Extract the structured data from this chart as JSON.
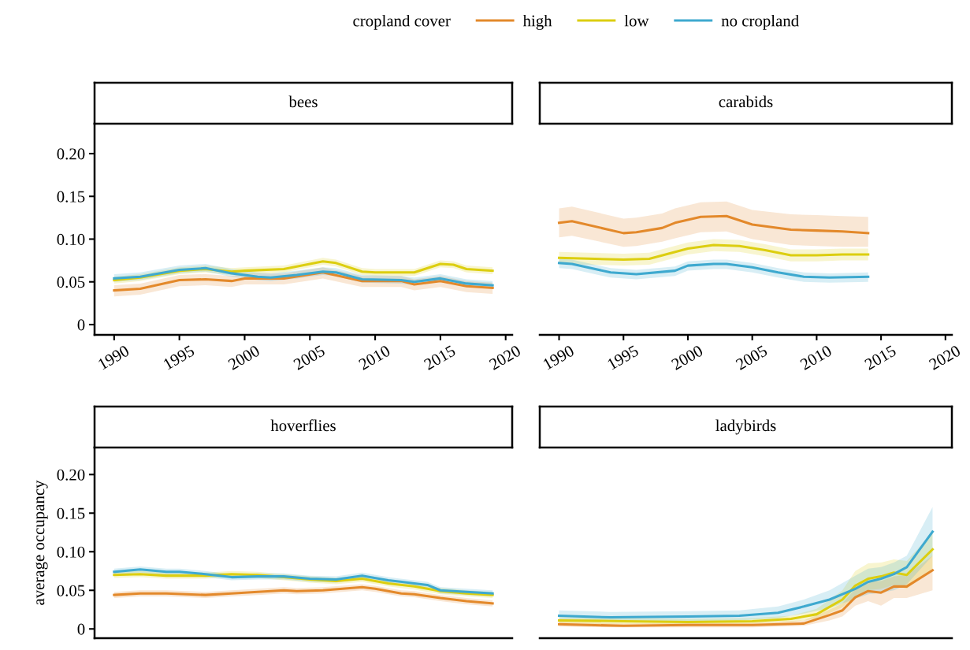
{
  "chart_data": [
    {
      "type": "line",
      "title": "bees",
      "legend": "top",
      "legend_title": "cropland cover",
      "xlim": [
        1988.5,
        2020.5
      ],
      "ylim": [
        -0.012,
        0.235
      ],
      "xticks": [
        1990,
        1995,
        2000,
        2005,
        2010,
        2015,
        2020
      ],
      "yticks": [
        {
          "value": 0,
          "label": "0"
        },
        {
          "value": 0.05,
          "label": "0.05"
        },
        {
          "value": 0.1,
          "label": "0.10"
        },
        {
          "value": 0.15,
          "label": "0.15"
        },
        {
          "value": 0.2,
          "label": "0.20"
        }
      ],
      "grid": false,
      "series": [
        {
          "name": "high",
          "color": "#e3892b",
          "x": [
            1990,
            1992,
            1995,
            1997,
            1999,
            2000,
            2003,
            2006,
            2009,
            2012,
            2013,
            2015,
            2017,
            2019
          ],
          "values": [
            0.04,
            0.042,
            0.052,
            0.053,
            0.051,
            0.054,
            0.054,
            0.061,
            0.051,
            0.051,
            0.047,
            0.051,
            0.045,
            0.043
          ],
          "lower": [
            0.033,
            0.035,
            0.045,
            0.046,
            0.044,
            0.047,
            0.047,
            0.054,
            0.044,
            0.044,
            0.04,
            0.044,
            0.038,
            0.036
          ],
          "upper": [
            0.046,
            0.048,
            0.058,
            0.059,
            0.057,
            0.06,
            0.06,
            0.067,
            0.057,
            0.057,
            0.053,
            0.057,
            0.051,
            0.049
          ]
        },
        {
          "name": "low",
          "color": "#dcce10",
          "x": [
            1990,
            1992,
            1995,
            1997,
            1999,
            2000,
            2003,
            2005,
            2006,
            2007,
            2009,
            2010,
            2013,
            2015,
            2016,
            2017,
            2019
          ],
          "values": [
            0.052,
            0.055,
            0.063,
            0.065,
            0.062,
            0.063,
            0.065,
            0.071,
            0.074,
            0.072,
            0.062,
            0.061,
            0.061,
            0.071,
            0.07,
            0.065,
            0.063
          ],
          "lower": [
            0.048,
            0.051,
            0.059,
            0.061,
            0.058,
            0.059,
            0.061,
            0.067,
            0.07,
            0.068,
            0.058,
            0.057,
            0.057,
            0.067,
            0.066,
            0.061,
            0.059
          ],
          "upper": [
            0.056,
            0.059,
            0.067,
            0.069,
            0.066,
            0.067,
            0.069,
            0.075,
            0.078,
            0.076,
            0.066,
            0.065,
            0.065,
            0.075,
            0.074,
            0.069,
            0.067
          ]
        },
        {
          "name": "no cropland",
          "color": "#3ea9cf",
          "x": [
            1990,
            1992,
            1995,
            1997,
            1999,
            2001,
            2002,
            2004,
            2006,
            2007,
            2009,
            2012,
            2013,
            2015,
            2017,
            2019
          ],
          "values": [
            0.054,
            0.056,
            0.064,
            0.066,
            0.06,
            0.056,
            0.055,
            0.058,
            0.062,
            0.061,
            0.053,
            0.052,
            0.05,
            0.054,
            0.048,
            0.046
          ],
          "lower": [
            0.05,
            0.052,
            0.06,
            0.062,
            0.056,
            0.052,
            0.051,
            0.054,
            0.058,
            0.057,
            0.049,
            0.048,
            0.046,
            0.05,
            0.044,
            0.042
          ],
          "upper": [
            0.059,
            0.061,
            0.069,
            0.071,
            0.065,
            0.061,
            0.06,
            0.063,
            0.067,
            0.066,
            0.058,
            0.057,
            0.055,
            0.059,
            0.053,
            0.051
          ]
        }
      ]
    },
    {
      "type": "line",
      "title": "carabids",
      "tick_labels": "x",
      "xlim": [
        1988.5,
        2020.5
      ],
      "ylim": [
        -0.012,
        0.235
      ],
      "xticks": [
        1990,
        1995,
        2000,
        2005,
        2010,
        2015,
        2020
      ],
      "grid": false,
      "series": [
        {
          "color": "#e3892b",
          "x": [
            1990,
            1991,
            1995,
            1996,
            1998,
            1999,
            2001,
            2003,
            2005,
            2008,
            2010,
            2012,
            2014
          ],
          "values": [
            0.119,
            0.121,
            0.107,
            0.108,
            0.113,
            0.119,
            0.126,
            0.127,
            0.117,
            0.111,
            0.11,
            0.109,
            0.107
          ],
          "lower": [
            0.102,
            0.104,
            0.091,
            0.092,
            0.097,
            0.101,
            0.108,
            0.109,
            0.1,
            0.093,
            0.092,
            0.091,
            0.091
          ],
          "upper": [
            0.136,
            0.138,
            0.124,
            0.125,
            0.13,
            0.136,
            0.143,
            0.144,
            0.134,
            0.129,
            0.128,
            0.127,
            0.126
          ]
        },
        {
          "color": "#dcce10",
          "x": [
            1990,
            1995,
            1997,
            2000,
            2002,
            2004,
            2006,
            2008,
            2010,
            2012,
            2014
          ],
          "values": [
            0.078,
            0.076,
            0.077,
            0.089,
            0.093,
            0.092,
            0.087,
            0.081,
            0.081,
            0.082,
            0.082
          ],
          "lower": [
            0.071,
            0.069,
            0.07,
            0.082,
            0.086,
            0.085,
            0.08,
            0.074,
            0.074,
            0.075,
            0.075
          ],
          "upper": [
            0.085,
            0.083,
            0.084,
            0.096,
            0.1,
            0.099,
            0.094,
            0.088,
            0.088,
            0.089,
            0.089
          ]
        },
        {
          "color": "#3ea9cf",
          "x": [
            1990,
            1991,
            1994,
            1996,
            1999,
            2000,
            2002,
            2003,
            2005,
            2007,
            2009,
            2011,
            2014
          ],
          "values": [
            0.072,
            0.071,
            0.061,
            0.059,
            0.063,
            0.069,
            0.071,
            0.071,
            0.067,
            0.061,
            0.056,
            0.055,
            0.056
          ],
          "lower": [
            0.066,
            0.065,
            0.055,
            0.053,
            0.057,
            0.063,
            0.065,
            0.065,
            0.061,
            0.055,
            0.05,
            0.049,
            0.05
          ],
          "upper": [
            0.077,
            0.076,
            0.066,
            0.064,
            0.068,
            0.074,
            0.076,
            0.076,
            0.072,
            0.066,
            0.061,
            0.06,
            0.061
          ]
        }
      ]
    },
    {
      "type": "line",
      "title": "hoverflies",
      "ylabel": "average occupancy",
      "tick_labels": "y",
      "xlim": [
        1988.5,
        2020.5
      ],
      "ylim": [
        -0.012,
        0.235
      ],
      "yticks": [
        {
          "value": 0,
          "label": "0"
        },
        {
          "value": 0.05,
          "label": "0.05"
        },
        {
          "value": 0.1,
          "label": "0.10"
        },
        {
          "value": 0.15,
          "label": "0.15"
        },
        {
          "value": 0.2,
          "label": "0.20"
        }
      ],
      "grid": false,
      "series": [
        {
          "color": "#e3892b",
          "x": [
            1990,
            1992,
            1994,
            1997,
            1999,
            2001,
            2003,
            2004,
            2006,
            2009,
            2010,
            2012,
            2013,
            2015,
            2016,
            2017,
            2019
          ],
          "values": [
            0.044,
            0.046,
            0.046,
            0.044,
            0.046,
            0.048,
            0.05,
            0.049,
            0.05,
            0.054,
            0.052,
            0.046,
            0.045,
            0.04,
            0.038,
            0.036,
            0.033
          ],
          "lower": [
            0.04,
            0.042,
            0.042,
            0.04,
            0.042,
            0.044,
            0.046,
            0.045,
            0.046,
            0.05,
            0.048,
            0.042,
            0.041,
            0.036,
            0.034,
            0.032,
            0.029
          ],
          "upper": [
            0.048,
            0.05,
            0.05,
            0.048,
            0.05,
            0.052,
            0.054,
            0.053,
            0.054,
            0.058,
            0.056,
            0.05,
            0.049,
            0.044,
            0.042,
            0.04,
            0.037
          ]
        },
        {
          "color": "#dcce10",
          "x": [
            1990,
            1992,
            1994,
            1997,
            1999,
            2001,
            2003,
            2005,
            2007,
            2009,
            2011,
            2013,
            2015,
            2017,
            2019
          ],
          "values": [
            0.07,
            0.071,
            0.069,
            0.069,
            0.071,
            0.07,
            0.067,
            0.064,
            0.062,
            0.065,
            0.059,
            0.055,
            0.049,
            0.046,
            0.044
          ],
          "lower": [
            0.066,
            0.067,
            0.065,
            0.065,
            0.067,
            0.066,
            0.063,
            0.06,
            0.058,
            0.061,
            0.055,
            0.051,
            0.045,
            0.042,
            0.04
          ],
          "upper": [
            0.074,
            0.075,
            0.073,
            0.073,
            0.075,
            0.074,
            0.071,
            0.068,
            0.066,
            0.069,
            0.063,
            0.059,
            0.053,
            0.05,
            0.048
          ]
        },
        {
          "color": "#3ea9cf",
          "x": [
            1990,
            1992,
            1994,
            1995,
            1997,
            1999,
            2001,
            2003,
            2005,
            2007,
            2009,
            2011,
            2013,
            2014,
            2015,
            2017,
            2019
          ],
          "values": [
            0.074,
            0.077,
            0.074,
            0.074,
            0.071,
            0.067,
            0.068,
            0.068,
            0.065,
            0.064,
            0.069,
            0.063,
            0.059,
            0.057,
            0.05,
            0.048,
            0.046
          ],
          "lower": [
            0.07,
            0.073,
            0.07,
            0.07,
            0.067,
            0.063,
            0.064,
            0.064,
            0.061,
            0.06,
            0.065,
            0.059,
            0.055,
            0.053,
            0.046,
            0.044,
            0.042
          ],
          "upper": [
            0.078,
            0.081,
            0.078,
            0.078,
            0.075,
            0.071,
            0.072,
            0.072,
            0.069,
            0.068,
            0.073,
            0.067,
            0.063,
            0.061,
            0.054,
            0.052,
            0.05
          ]
        }
      ]
    },
    {
      "type": "line",
      "title": "ladybirds",
      "tick_labels": false,
      "xlim": [
        1988.5,
        2020.5
      ],
      "ylim": [
        -0.012,
        0.235
      ],
      "grid": false,
      "series": [
        {
          "color": "#e3892b",
          "x": [
            1990,
            1995,
            2000,
            2005,
            2009,
            2011,
            2012,
            2013,
            2014,
            2015,
            2016,
            2017,
            2019
          ],
          "values": [
            0.006,
            0.004,
            0.005,
            0.005,
            0.007,
            0.018,
            0.024,
            0.041,
            0.049,
            0.047,
            0.055,
            0.055,
            0.076
          ],
          "lower": [
            0.003,
            0.002,
            0.002,
            0.002,
            0.004,
            0.011,
            0.016,
            0.03,
            0.036,
            0.03,
            0.04,
            0.04,
            0.05
          ],
          "upper": [
            0.009,
            0.007,
            0.008,
            0.008,
            0.011,
            0.025,
            0.033,
            0.052,
            0.062,
            0.062,
            0.068,
            0.07,
            0.095
          ]
        },
        {
          "color": "#dcce10",
          "x": [
            1990,
            1995,
            2000,
            2005,
            2008,
            2010,
            2012,
            2013,
            2014,
            2015,
            2016,
            2017,
            2019
          ],
          "values": [
            0.011,
            0.01,
            0.009,
            0.01,
            0.013,
            0.019,
            0.038,
            0.056,
            0.065,
            0.068,
            0.073,
            0.07,
            0.103
          ],
          "lower": [
            0.007,
            0.006,
            0.006,
            0.007,
            0.009,
            0.013,
            0.028,
            0.042,
            0.05,
            0.052,
            0.057,
            0.052,
            0.078
          ],
          "upper": [
            0.015,
            0.014,
            0.013,
            0.014,
            0.017,
            0.026,
            0.05,
            0.075,
            0.085,
            0.086,
            0.09,
            0.088,
            0.125
          ]
        },
        {
          "color": "#3ea9cf",
          "x": [
            1990,
            1994,
            2000,
            2004,
            2007,
            2009,
            2011,
            2013,
            2014,
            2015,
            2016,
            2017,
            2019
          ],
          "values": [
            0.017,
            0.015,
            0.016,
            0.017,
            0.021,
            0.029,
            0.038,
            0.052,
            0.061,
            0.065,
            0.071,
            0.08,
            0.126
          ],
          "lower": [
            0.01,
            0.009,
            0.01,
            0.011,
            0.014,
            0.02,
            0.027,
            0.039,
            0.045,
            0.047,
            0.05,
            0.058,
            0.095
          ],
          "upper": [
            0.024,
            0.022,
            0.023,
            0.024,
            0.029,
            0.038,
            0.05,
            0.069,
            0.078,
            0.08,
            0.086,
            0.095,
            0.158
          ]
        }
      ]
    }
  ]
}
